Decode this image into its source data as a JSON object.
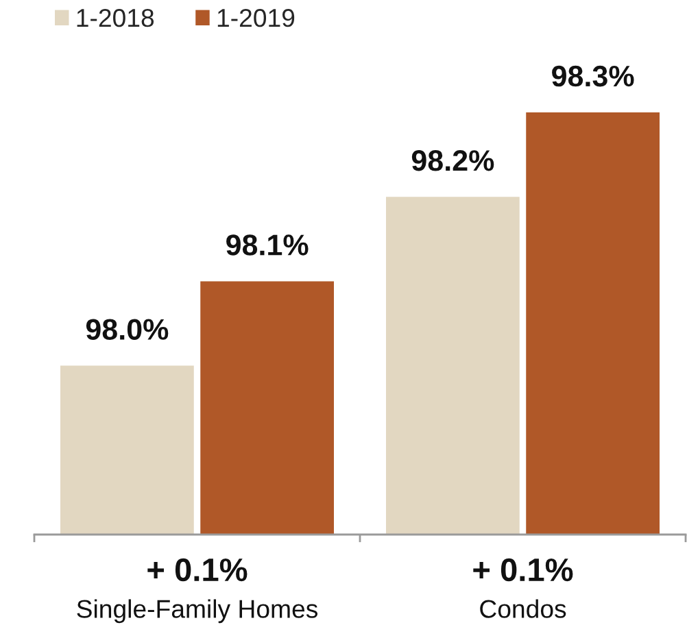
{
  "chart_data": {
    "type": "bar",
    "categories": [
      "Single-Family Homes",
      "Condos"
    ],
    "series": [
      {
        "name": "1-2018",
        "color": "#e2d7c1",
        "values": [
          98.0,
          98.2
        ],
        "value_labels": [
          "98.0%",
          "98.2%"
        ]
      },
      {
        "name": "1-2019",
        "color": "#b05828",
        "values": [
          98.1,
          98.3
        ],
        "value_labels": [
          "98.1%",
          "98.3%"
        ]
      }
    ],
    "ylim": [
      97.8,
      98.3
    ],
    "tick_labels": "x",
    "legend": "top left",
    "annotations": [
      "+ 0.1%",
      "+ 0.1%"
    ]
  }
}
